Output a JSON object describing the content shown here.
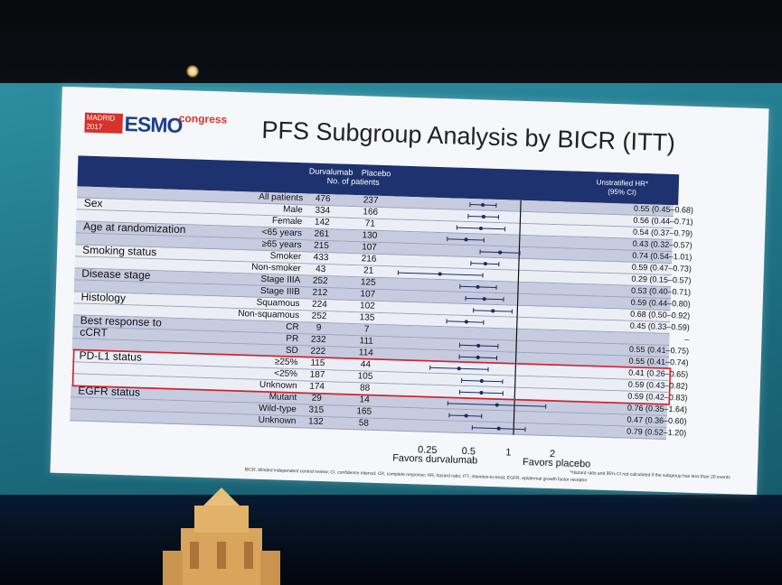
{
  "logo": {
    "city": "MADRID",
    "year": "2017",
    "brand": "ESMO",
    "suffix": "congress"
  },
  "title": "PFS Subgroup Analysis by BICR (ITT)",
  "header": {
    "durva": "Durvalumab",
    "placebo": "Placebo",
    "n": "No. of patients",
    "hr": "Unstratified HR*",
    "ci": "(95% CI)"
  },
  "rows": [
    {
      "group": "",
      "sub": "All patients",
      "n1": "476",
      "n2": "237",
      "hr": "0.55 (0.45–0.68)",
      "est": 0.55,
      "lo": 0.45,
      "hi": 0.68,
      "shade": true
    },
    {
      "group": "Sex",
      "sub": "Male",
      "n1": "334",
      "n2": "166",
      "hr": "0.56 (0.44–0.71)",
      "est": 0.56,
      "lo": 0.44,
      "hi": 0.71,
      "shade": false
    },
    {
      "group": "",
      "sub": "Female",
      "n1": "142",
      "n2": "71",
      "hr": "0.54 (0.37–0.79)",
      "est": 0.54,
      "lo": 0.37,
      "hi": 0.79,
      "shade": false
    },
    {
      "group": "Age at randomization",
      "sub": "<65 years",
      "n1": "261",
      "n2": "130",
      "hr": "0.43 (0.32–0.57)",
      "est": 0.43,
      "lo": 0.32,
      "hi": 0.57,
      "shade": true
    },
    {
      "group": "",
      "sub": "≥65 years",
      "n1": "215",
      "n2": "107",
      "hr": "0.74 (0.54–1.01)",
      "est": 0.74,
      "lo": 0.54,
      "hi": 1.01,
      "shade": true
    },
    {
      "group": "Smoking status",
      "sub": "Smoker",
      "n1": "433",
      "n2": "216",
      "hr": "0.59 (0.47–0.73)",
      "est": 0.59,
      "lo": 0.47,
      "hi": 0.73,
      "shade": false
    },
    {
      "group": "",
      "sub": "Non-smoker",
      "n1": "43",
      "n2": "21",
      "hr": "0.29 (0.15–0.57)",
      "est": 0.29,
      "lo": 0.15,
      "hi": 0.57,
      "shade": false
    },
    {
      "group": "Disease stage",
      "sub": "Stage IIIA",
      "n1": "252",
      "n2": "125",
      "hr": "0.53 (0.40–0.71)",
      "est": 0.53,
      "lo": 0.4,
      "hi": 0.71,
      "shade": true
    },
    {
      "group": "",
      "sub": "Stage IIIB",
      "n1": "212",
      "n2": "107",
      "hr": "0.59 (0.44–0.80)",
      "est": 0.59,
      "lo": 0.44,
      "hi": 0.8,
      "shade": true
    },
    {
      "group": "Histology",
      "sub": "Squamous",
      "n1": "224",
      "n2": "102",
      "hr": "0.68 (0.50–0.92)",
      "est": 0.68,
      "lo": 0.5,
      "hi": 0.92,
      "shade": false
    },
    {
      "group": "",
      "sub": "Non-squamous",
      "n1": "252",
      "n2": "135",
      "hr": "0.45 (0.33–0.59)",
      "est": 0.45,
      "lo": 0.33,
      "hi": 0.59,
      "shade": false
    },
    {
      "group": "Best response to",
      "sub": "CR",
      "n1": "9",
      "n2": "7",
      "hr": "–",
      "est": null,
      "lo": null,
      "hi": null,
      "shade": true
    },
    {
      "group": "cCRT",
      "sub": "PR",
      "n1": "232",
      "n2": "111",
      "hr": "0.55 (0.41–0.75)",
      "est": 0.55,
      "lo": 0.41,
      "hi": 0.75,
      "shade": true
    },
    {
      "group": "",
      "sub": "SD",
      "n1": "222",
      "n2": "114",
      "hr": "0.55 (0.41–0.74)",
      "est": 0.55,
      "lo": 0.41,
      "hi": 0.74,
      "shade": true
    },
    {
      "group": "PD-L1 status",
      "sub": "≥25%",
      "n1": "115",
      "n2": "44",
      "hr": "0.41 (0.26–0.65)",
      "est": 0.41,
      "lo": 0.26,
      "hi": 0.65,
      "shade": false
    },
    {
      "group": "",
      "sub": "<25%",
      "n1": "187",
      "n2": "105",
      "hr": "0.59 (0.43–0.82)",
      "est": 0.59,
      "lo": 0.43,
      "hi": 0.82,
      "shade": false
    },
    {
      "group": "",
      "sub": "Unknown",
      "n1": "174",
      "n2": "88",
      "hr": "0.59 (0.42–0.83)",
      "est": 0.59,
      "lo": 0.42,
      "hi": 0.83,
      "shade": false
    },
    {
      "group": "EGFR status",
      "sub": "Mutant",
      "n1": "29",
      "n2": "14",
      "hr": "0.76 (0.35–1.64)",
      "est": 0.76,
      "lo": 0.35,
      "hi": 1.64,
      "shade": true
    },
    {
      "group": "",
      "sub": "Wild-type",
      "n1": "315",
      "n2": "165",
      "hr": "0.47 (0.36–0.60)",
      "est": 0.47,
      "lo": 0.36,
      "hi": 0.6,
      "shade": true
    },
    {
      "group": "",
      "sub": "Unknown",
      "n1": "132",
      "n2": "58",
      "hr": "0.79 (0.52–1.20)",
      "est": 0.79,
      "lo": 0.52,
      "hi": 1.2,
      "shade": true
    }
  ],
  "axis": {
    "ticks": [
      "0.25",
      "0.5",
      "1",
      "2"
    ],
    "tick_values": [
      0.25,
      0.5,
      1,
      2
    ],
    "xlim": [
      0.125,
      2.6
    ]
  },
  "favors": {
    "left": "Favors durvalumab",
    "right": "Favors placebo"
  },
  "footnote_hr": "*Hazard ratio and 95% CI not calculated if the subgroup has less than 20 events",
  "footnote_abbr": "BICR, blinded independent central review; CI, confidence interval; CR, complete response; HR, hazard ratio; ITT, intention-to-treat; EGFR, epidermal growth factor receptor",
  "colors": {
    "header": "#1e3270",
    "highlight": "#d61f2c",
    "marker": "#1a2a5e"
  }
}
